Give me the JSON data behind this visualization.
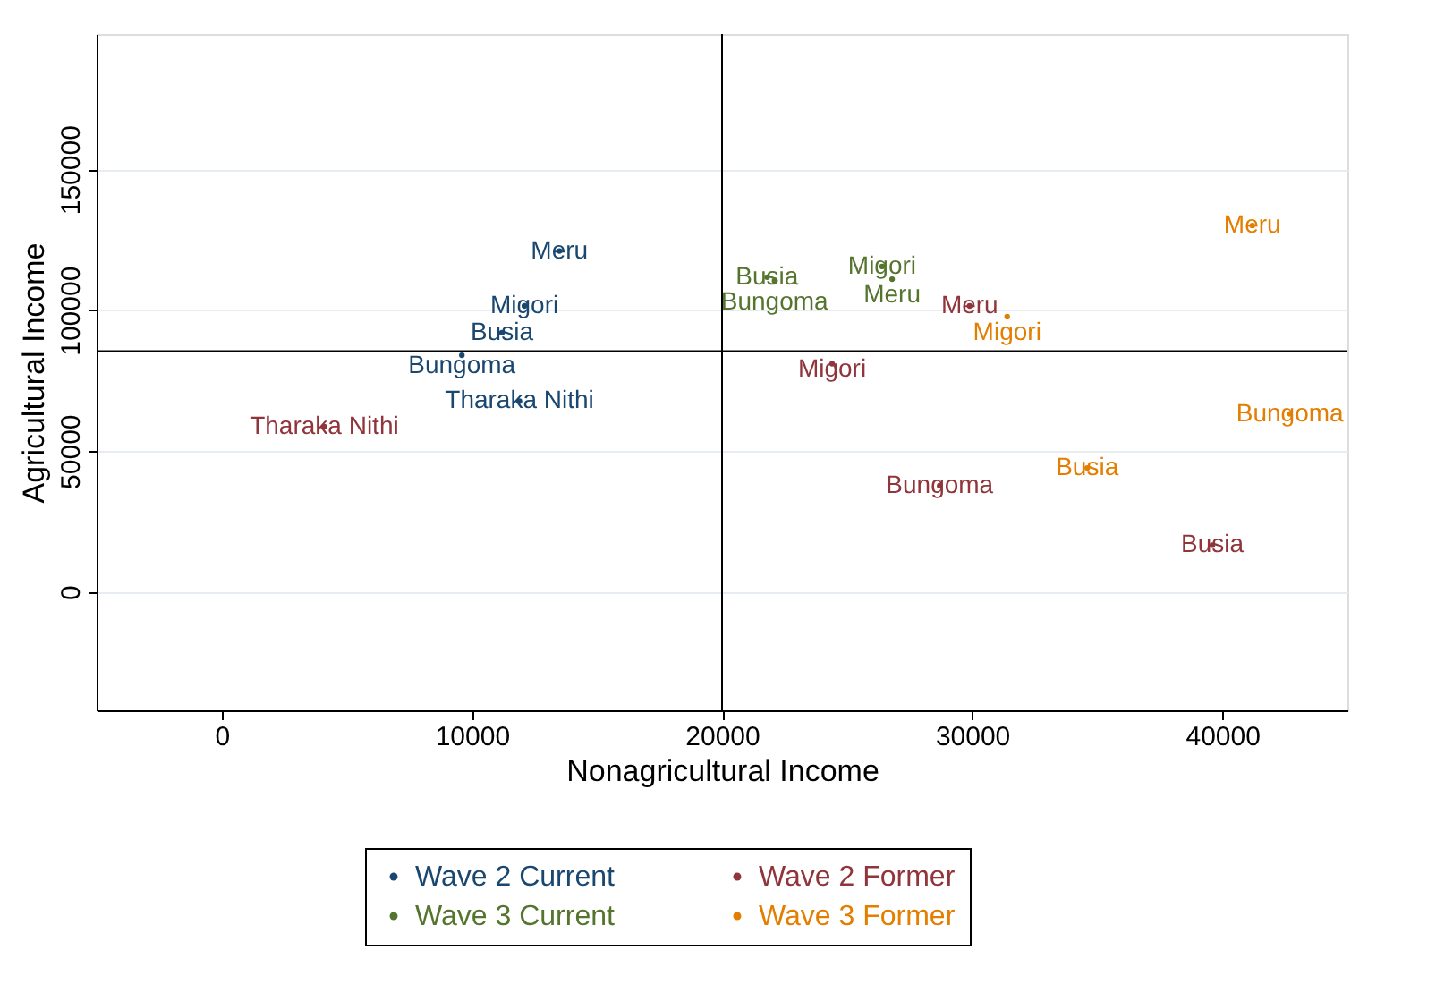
{
  "chart_data": {
    "type": "scatter",
    "xlabel": "Nonagricultural Income",
    "ylabel": "Agricultural Income",
    "xlim": [
      -5000,
      45000
    ],
    "xticks": [
      0,
      10000,
      20000,
      30000,
      40000
    ],
    "ylim": [
      -42000,
      198000
    ],
    "yticks": [
      0,
      50000,
      100000,
      150000
    ],
    "grid": "y",
    "marker": "circle",
    "legend": "bottom",
    "ref_lines": [
      {
        "axis": "x",
        "value": 20000,
        "color": "#000000"
      },
      {
        "axis": "y",
        "value": 85500,
        "color": "#000000"
      }
    ],
    "series": [
      {
        "name": "Wave 2 Current",
        "color": "#1a476f",
        "x": [
          13500,
          12100,
          11200,
          9600,
          11900
        ],
        "values": [
          121000,
          101500,
          92000,
          84000,
          67700
        ],
        "value_labels": [
          "Meru",
          "Migori",
          "Busia",
          "Bungoma",
          "Tharaka Nithi"
        ]
      },
      {
        "name": "Wave 2 Former",
        "color": "#90353b",
        "x": [
          4100,
          24400,
          29900,
          28700,
          39600
        ],
        "values": [
          58700,
          81000,
          101500,
          37700,
          16600
        ],
        "value_labels": [
          "Tharaka Nithi",
          "Migori",
          "Meru",
          "Bungoma",
          "Busia"
        ]
      },
      {
        "name": "Wave 3 Current",
        "color": "#55752f",
        "x": [
          21800,
          22100,
          26400,
          26800
        ],
        "values": [
          111700,
          110400,
          115500,
          111000
        ],
        "value_labels": [
          "Busia",
          "Bungoma",
          "Migori",
          "Meru"
        ]
      },
      {
        "name": "Wave 3 Former",
        "color": "#e37e00",
        "x": [
          41200,
          31400,
          42700,
          34600
        ],
        "values": [
          130000,
          97700,
          63200,
          44000
        ],
        "value_labels": [
          "Meru",
          "Migori",
          "Bungoma",
          "Busia"
        ]
      }
    ]
  }
}
